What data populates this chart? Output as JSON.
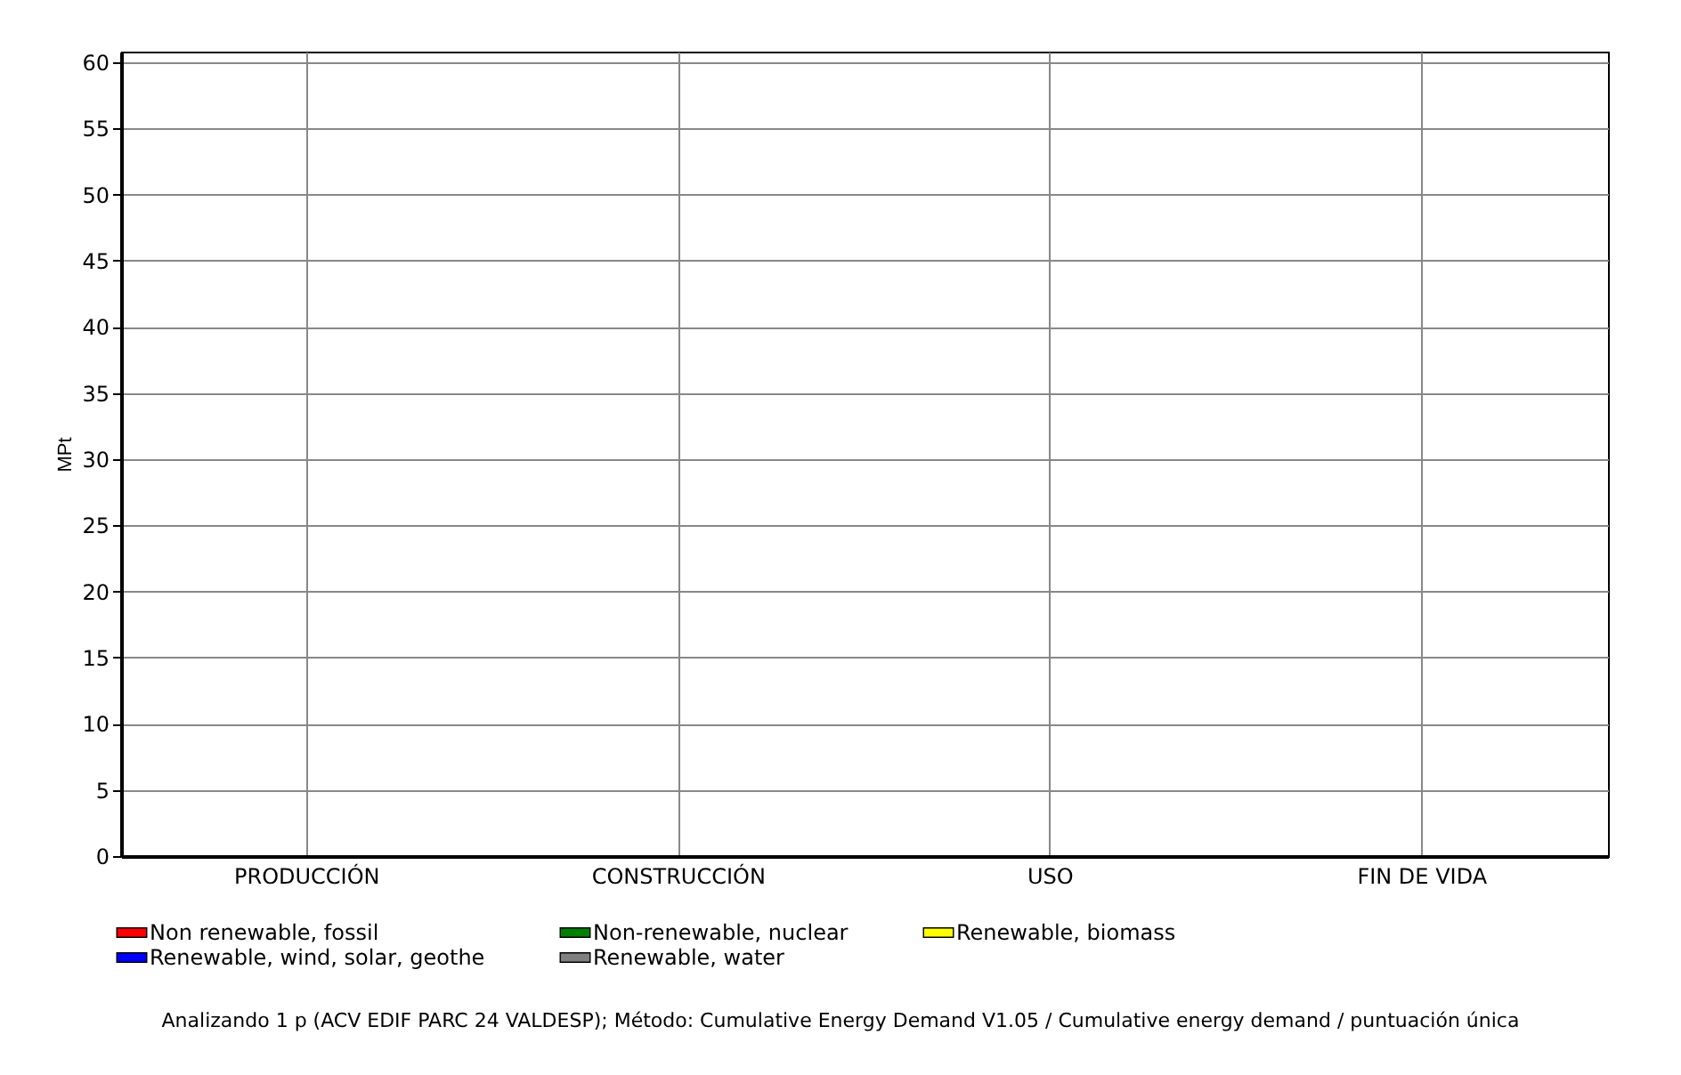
{
  "chart_data": {
    "type": "bar",
    "ylabel": "MPt",
    "categories": [
      "PRODUCCIÓN",
      "CONSTRUCCIÓN",
      "USO",
      "FIN DE VIDA"
    ],
    "series": [
      {
        "name": "Non renewable, fossil",
        "color": "#ff0000",
        "values": [
          0,
          0,
          0,
          0
        ]
      },
      {
        "name": "Non-renewable, nuclear",
        "color": "#008000",
        "values": [
          0,
          0,
          0,
          0
        ]
      },
      {
        "name": "Renewable, biomass",
        "color": "#ffff00",
        "values": [
          0,
          0,
          0,
          0
        ]
      },
      {
        "name": "Renewable, wind, solar, geothe",
        "color": "#0000ff",
        "values": [
          0,
          0,
          0,
          0
        ]
      },
      {
        "name": "Renewable, water",
        "color": "#808080",
        "values": [
          0,
          0,
          0,
          0
        ]
      }
    ],
    "ylim": [
      0,
      60.8
    ],
    "yticks": [
      0,
      5,
      10,
      15,
      20,
      25,
      30,
      35,
      40,
      45,
      50,
      55,
      60
    ],
    "grid": true,
    "legend": "bottom",
    "annotations": [
      "Analizando 1 p (ACV EDIF PARC 24 VALDESP);  Método: Cumulative Energy Demand V1.05 /  Cumulative energy demand / puntuación única"
    ]
  }
}
